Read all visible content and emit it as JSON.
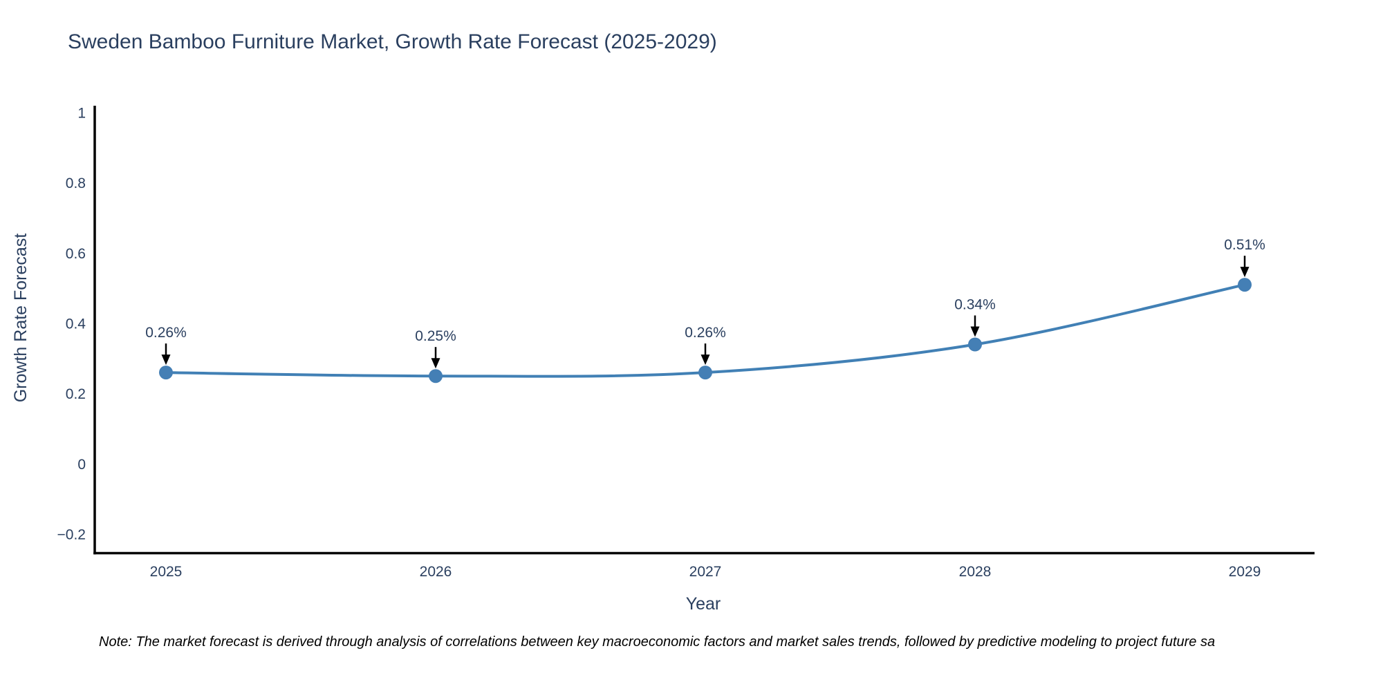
{
  "page": {
    "note": "Note: The market forecast is derived through analysis of correlations between key macroeconomic factors and market sales trends, followed by predictive modeling to project future sa"
  },
  "chart_data": {
    "type": "line",
    "line_shape": "spline",
    "title": "Sweden Bamboo Furniture Market, Growth Rate Forecast (2025-2029)",
    "xlabel": "Year",
    "ylabel": "Growth Rate Forecast",
    "categories": [
      "2025",
      "2026",
      "2027",
      "2028",
      "2029"
    ],
    "series": [
      {
        "name": "Growth Rate Forecast",
        "values": [
          0.26,
          0.25,
          0.26,
          0.34,
          0.51
        ],
        "point_labels": [
          "0.26%",
          "0.25%",
          "0.26%",
          "0.34%",
          "0.51%"
        ]
      }
    ],
    "ylim": [
      -0.2,
      1
    ],
    "yticks": [
      1,
      0.8,
      0.6,
      0.4,
      0.2,
      0,
      -0.2
    ],
    "grid": false,
    "legend": false,
    "annotations_have_arrows": true,
    "colors": {
      "line": "#4180b5",
      "marker": "#447fb5",
      "text": "#2a3f5f",
      "axis": "#000000",
      "annotation_arrow": "#000000",
      "background": "#ffffff"
    }
  }
}
